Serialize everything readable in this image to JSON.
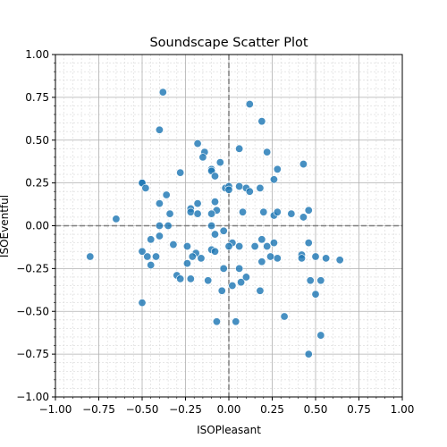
{
  "chart_data": {
    "type": "scatter",
    "title": "Soundscape Scatter Plot",
    "xlabel": "ISOPleasant",
    "ylabel": "ISOEventful",
    "xlim": [
      -1.0,
      1.0
    ],
    "ylim": [
      -1.0,
      1.0
    ],
    "xticks": [
      "−1.00",
      "−0.75",
      "−0.50",
      "−0.25",
      "0.00",
      "0.25",
      "0.50",
      "0.75",
      "1.00"
    ],
    "yticks": [
      "−1.00",
      "−0.75",
      "−0.50",
      "−0.25",
      "0.00",
      "0.25",
      "0.50",
      "0.75",
      "1.00"
    ],
    "grid": true,
    "minor_grid": true,
    "reference_lines": {
      "x": 0,
      "y": 0,
      "style": "dashed"
    },
    "point_color": "#1f77b4",
    "points": [
      {
        "x": -0.38,
        "y": 0.78
      },
      {
        "x": -0.4,
        "y": 0.56
      },
      {
        "x": -0.18,
        "y": 0.48
      },
      {
        "x": 0.12,
        "y": 0.71
      },
      {
        "x": 0.19,
        "y": 0.61
      },
      {
        "x": -0.14,
        "y": 0.43
      },
      {
        "x": -0.15,
        "y": 0.4
      },
      {
        "x": 0.06,
        "y": 0.45
      },
      {
        "x": 0.22,
        "y": 0.43
      },
      {
        "x": -0.05,
        "y": 0.37
      },
      {
        "x": 0.43,
        "y": 0.36
      },
      {
        "x": -0.1,
        "y": 0.33
      },
      {
        "x": -0.28,
        "y": 0.31
      },
      {
        "x": 0.28,
        "y": 0.33
      },
      {
        "x": -0.1,
        "y": 0.32
      },
      {
        "x": -0.08,
        "y": 0.29
      },
      {
        "x": 0.26,
        "y": 0.27
      },
      {
        "x": -0.5,
        "y": 0.25
      },
      {
        "x": -0.5,
        "y": 0.25
      },
      {
        "x": -0.48,
        "y": 0.22
      },
      {
        "x": -0.02,
        "y": 0.22
      },
      {
        "x": 0.0,
        "y": 0.23
      },
      {
        "x": 0.06,
        "y": 0.23
      },
      {
        "x": 0.1,
        "y": 0.22
      },
      {
        "x": 0.12,
        "y": 0.2
      },
      {
        "x": 0.18,
        "y": 0.22
      },
      {
        "x": -0.36,
        "y": 0.18
      },
      {
        "x": -0.4,
        "y": 0.13
      },
      {
        "x": -0.18,
        "y": 0.13
      },
      {
        "x": -0.22,
        "y": 0.1
      },
      {
        "x": -0.22,
        "y": 0.08
      },
      {
        "x": -0.18,
        "y": 0.07
      },
      {
        "x": -0.34,
        "y": 0.07
      },
      {
        "x": -0.08,
        "y": 0.14
      },
      {
        "x": -0.07,
        "y": 0.09
      },
      {
        "x": -0.1,
        "y": 0.07
      },
      {
        "x": 0.0,
        "y": 0.21
      },
      {
        "x": 0.08,
        "y": 0.08
      },
      {
        "x": 0.2,
        "y": 0.08
      },
      {
        "x": 0.26,
        "y": 0.06
      },
      {
        "x": 0.28,
        "y": 0.08
      },
      {
        "x": 0.36,
        "y": 0.07
      },
      {
        "x": 0.43,
        "y": 0.05
      },
      {
        "x": 0.46,
        "y": 0.09
      },
      {
        "x": -0.65,
        "y": 0.04
      },
      {
        "x": -0.4,
        "y": 0.0
      },
      {
        "x": -0.35,
        "y": 0.0
      },
      {
        "x": -0.1,
        "y": 0.0
      },
      {
        "x": -0.08,
        "y": -0.05
      },
      {
        "x": -0.03,
        "y": -0.03
      },
      {
        "x": 0.02,
        "y": -0.1
      },
      {
        "x": 0.0,
        "y": -0.12
      },
      {
        "x": 0.06,
        "y": -0.12
      },
      {
        "x": 0.15,
        "y": -0.12
      },
      {
        "x": 0.19,
        "y": -0.08
      },
      {
        "x": 0.22,
        "y": -0.12
      },
      {
        "x": 0.26,
        "y": -0.1
      },
      {
        "x": 0.46,
        "y": -0.1
      },
      {
        "x": -0.45,
        "y": -0.08
      },
      {
        "x": -0.4,
        "y": -0.06
      },
      {
        "x": -0.32,
        "y": -0.11
      },
      {
        "x": -0.24,
        "y": -0.12
      },
      {
        "x": -0.19,
        "y": -0.16
      },
      {
        "x": -0.1,
        "y": -0.14
      },
      {
        "x": -0.08,
        "y": -0.15
      },
      {
        "x": -0.8,
        "y": -0.18
      },
      {
        "x": -0.5,
        "y": -0.15
      },
      {
        "x": -0.47,
        "y": -0.18
      },
      {
        "x": -0.42,
        "y": -0.18
      },
      {
        "x": -0.45,
        "y": -0.23
      },
      {
        "x": -0.24,
        "y": -0.22
      },
      {
        "x": -0.21,
        "y": -0.18
      },
      {
        "x": -0.16,
        "y": -0.19
      },
      {
        "x": 0.19,
        "y": -0.21
      },
      {
        "x": 0.24,
        "y": -0.18
      },
      {
        "x": 0.28,
        "y": -0.19
      },
      {
        "x": 0.42,
        "y": -0.17
      },
      {
        "x": 0.42,
        "y": -0.19
      },
      {
        "x": 0.5,
        "y": -0.18
      },
      {
        "x": 0.56,
        "y": -0.19
      },
      {
        "x": 0.64,
        "y": -0.2
      },
      {
        "x": -0.3,
        "y": -0.29
      },
      {
        "x": -0.28,
        "y": -0.31
      },
      {
        "x": -0.22,
        "y": -0.31
      },
      {
        "x": -0.12,
        "y": -0.32
      },
      {
        "x": -0.03,
        "y": -0.25
      },
      {
        "x": 0.06,
        "y": -0.25
      },
      {
        "x": 0.02,
        "y": -0.35
      },
      {
        "x": 0.07,
        "y": -0.33
      },
      {
        "x": 0.1,
        "y": -0.3
      },
      {
        "x": 0.18,
        "y": -0.38
      },
      {
        "x": -0.04,
        "y": -0.38
      },
      {
        "x": 0.47,
        "y": -0.32
      },
      {
        "x": 0.53,
        "y": -0.32
      },
      {
        "x": 0.5,
        "y": -0.4
      },
      {
        "x": -0.5,
        "y": -0.45
      },
      {
        "x": 0.32,
        "y": -0.53
      },
      {
        "x": -0.07,
        "y": -0.56
      },
      {
        "x": 0.04,
        "y": -0.56
      },
      {
        "x": 0.53,
        "y": -0.64
      },
      {
        "x": 0.46,
        "y": -0.75
      }
    ]
  }
}
